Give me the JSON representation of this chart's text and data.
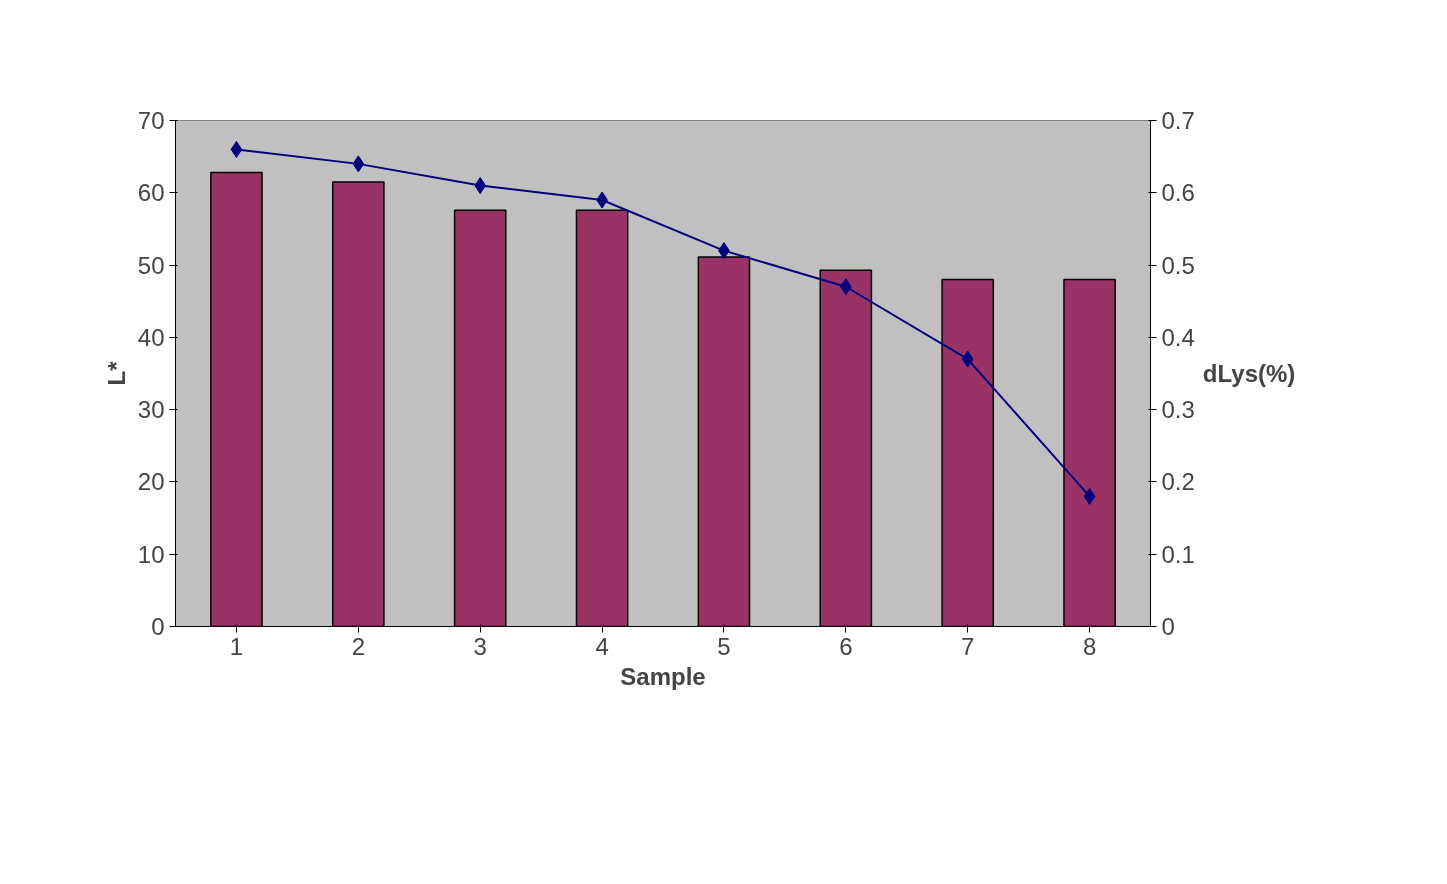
{
  "chart_data": {
    "type": "bar",
    "xlabel": "Sample",
    "ylabel": "L*",
    "y2label": "dLys(%)",
    "categories": [
      "1",
      "2",
      "3",
      "4",
      "5",
      "6",
      "7",
      "8"
    ],
    "series": [
      {
        "color": "#993366",
        "values": [
          62.8,
          61.5,
          57.6,
          57.6,
          51.1,
          49.3,
          48.0,
          48.0
        ]
      },
      {
        "type": "line",
        "axis": "y2",
        "color": "#000080",
        "marker": "diamond",
        "values": [
          0.66,
          0.64,
          0.61,
          0.59,
          0.52,
          0.47,
          0.37,
          0.18
        ]
      }
    ],
    "ylim": [
      0,
      70
    ],
    "yticks": [
      0,
      10,
      20,
      30,
      40,
      50,
      60,
      70
    ],
    "y2lim": [
      0,
      0.7
    ],
    "y2ticks": [
      0,
      0.1,
      0.2,
      0.3,
      0.4,
      0.5,
      0.6,
      0.7
    ],
    "grid": false
  }
}
